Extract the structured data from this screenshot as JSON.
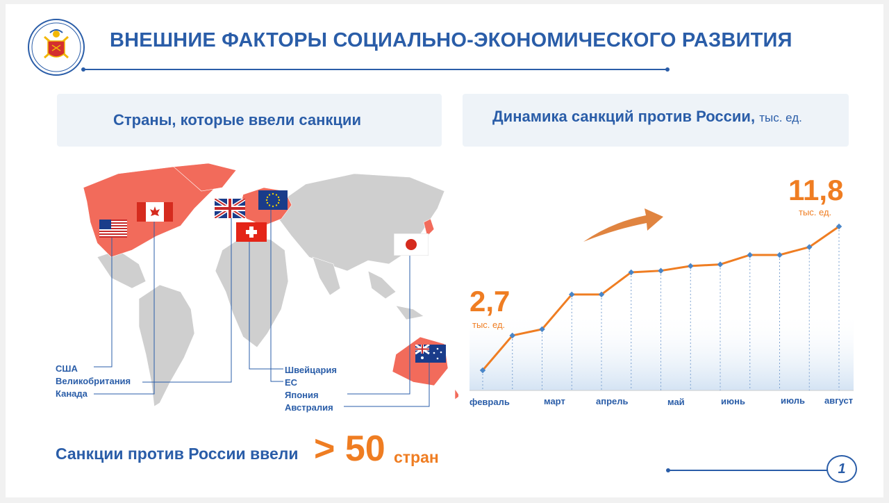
{
  "title": "ВНЕШНИЕ ФАКТОРЫ СОЦИАЛЬНО-ЭКОНОМИЧЕСКОГО РАЗВИТИЯ",
  "left_panel": {
    "heading": "Страны, которые ввели санкции"
  },
  "right_panel": {
    "heading": "Динамика санкций против России,",
    "unit": "тыс. ед."
  },
  "countries_left": [
    "США",
    "Великобритания",
    "Канада"
  ],
  "countries_right": [
    "Швейцария",
    "ЕС",
    "Япония",
    "Австралия"
  ],
  "summary": {
    "text": "Санкции против России ввели",
    "gt": ">",
    "number": "50",
    "word": "стран"
  },
  "page_number": "1",
  "colors": {
    "accent_blue": "#2a5da8",
    "accent_orange": "#ef7d22",
    "sanction_red": "#f26b5b",
    "map_gray": "#cfcfcf"
  },
  "chart_data": {
    "type": "area",
    "title": "Динамика санкций против России",
    "ylabel": "тыс. ед.",
    "start_value": "2,7",
    "end_value": "11,8",
    "start_unit": "тыс. ед.",
    "end_unit": "тыс. ед.",
    "month_labels": [
      "февраль",
      "март",
      "апрель",
      "май",
      "июнь",
      "июль",
      "август"
    ],
    "values": [
      2.7,
      4.9,
      5.3,
      7.5,
      7.5,
      8.9,
      9.0,
      9.3,
      9.4,
      10.0,
      10.0,
      10.5,
      11.8
    ],
    "ylim": [
      0,
      13
    ],
    "grid": false
  }
}
